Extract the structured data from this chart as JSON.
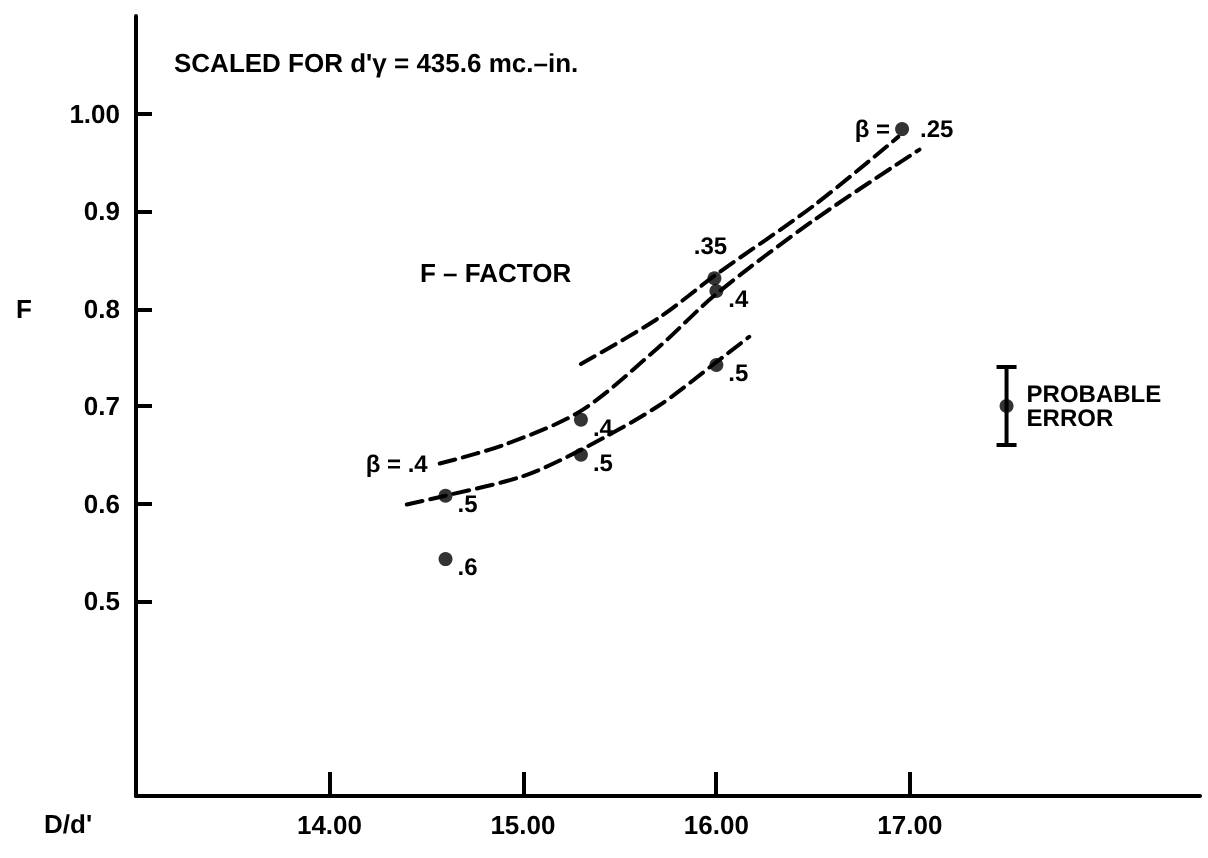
{
  "chart_data": {
    "type": "scatter",
    "title": "SCALED FOR d'γ = 435.6 mc.–in.",
    "xlabel": "D/d'",
    "ylabel": "F",
    "annotations": [
      "F – FACTOR",
      {
        "text": "β =",
        "x": 16.96,
        "y": 0.984
      },
      {
        "text": ".25",
        "x": 16.96,
        "y": 0.984
      },
      {
        "text": ".35",
        "x": 15.99,
        "y": 0.831
      },
      {
        "text": ".4",
        "x": 16.0,
        "y": 0.818
      },
      {
        "text": ".5",
        "x": 16.0,
        "y": 0.742
      },
      {
        "text": ".4",
        "x": 15.3,
        "y": 0.686
      },
      {
        "text": ".5",
        "x": 15.3,
        "y": 0.65
      },
      {
        "text": ".5",
        "x": 14.6,
        "y": 0.608
      },
      {
        "text": ".6",
        "x": 14.6,
        "y": 0.543
      },
      {
        "text": "β = .4",
        "x": 14.57,
        "y": 0.641
      },
      {
        "text": "PROBABLE ERROR",
        "x": 17.5,
        "y": 0.7
      }
    ],
    "series": [
      {
        "color": "#000000",
        "marker": "circle",
        "x": [
          16.96,
          15.99,
          16.0,
          16.0,
          15.3,
          15.3,
          14.6,
          14.6
        ],
        "values": [
          0.984,
          0.831,
          0.818,
          0.742,
          0.686,
          0.65,
          0.608,
          0.543
        ]
      },
      {
        "type": "line",
        "color": "#000000",
        "marker": "none",
        "line_style": "dashed",
        "x": [
          15.3,
          15.7,
          16.0,
          16.5,
          16.94
        ],
        "values": [
          0.743,
          0.79,
          0.835,
          0.905,
          0.976
        ]
      },
      {
        "type": "line",
        "color": "#000000",
        "marker": "none",
        "line_style": "dashed",
        "x": [
          14.57,
          14.9,
          15.3,
          15.7,
          16.0,
          16.5,
          17.05
        ],
        "values": [
          0.641,
          0.66,
          0.695,
          0.76,
          0.815,
          0.89,
          0.963
        ]
      },
      {
        "type": "line",
        "color": "#000000",
        "marker": "none",
        "line_style": "dashed",
        "x": [
          14.4,
          14.6,
          15.0,
          15.3,
          15.7,
          16.0,
          16.17
        ],
        "values": [
          0.599,
          0.608,
          0.628,
          0.655,
          0.7,
          0.745,
          0.771
        ]
      },
      {
        "color": "#000000",
        "marker": "circle",
        "x": [
          17.5
        ],
        "values": [
          0.7
        ],
        "errors": [
          0.04
        ]
      }
    ],
    "xlim": [
      13.0,
      18.5
    ],
    "ylim": [
      0.3,
      1.1
    ],
    "xticks": [
      {
        "value": 14,
        "label": "14.00"
      },
      {
        "value": 15,
        "label": "15.00"
      },
      {
        "value": 16,
        "label": "16.00"
      },
      {
        "value": 17,
        "label": "17.00"
      }
    ],
    "yticks": [
      0.5,
      0.6,
      0.7,
      0.8,
      0.9,
      {
        "value": 1,
        "label": "1.00"
      }
    ],
    "grid": false
  }
}
